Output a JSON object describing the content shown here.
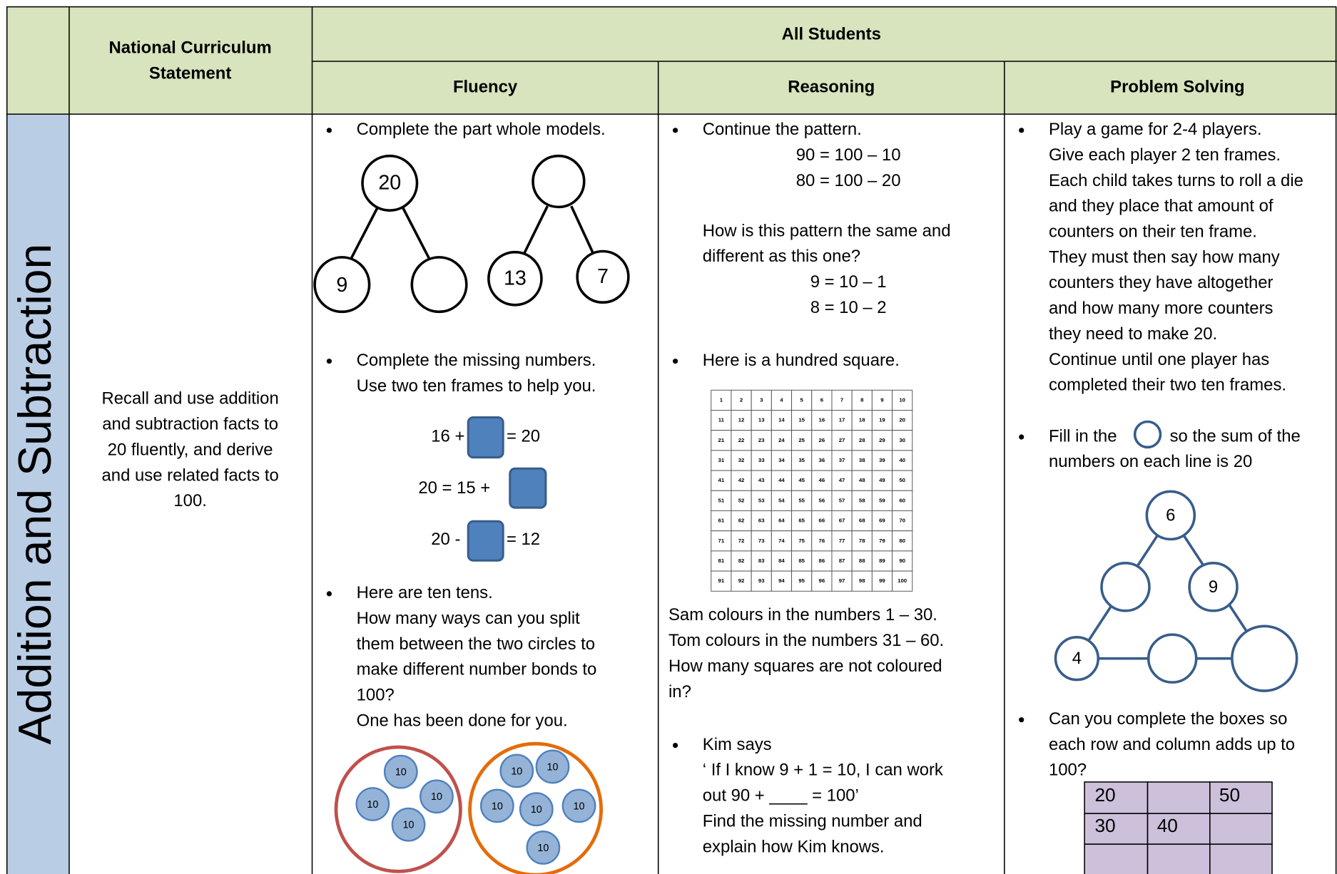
{
  "header": {
    "statement_heading": [
      "National Curriculum",
      "Statement"
    ],
    "group_heading": "All Students",
    "columns": [
      "Fluency",
      "Reasoning",
      "Problem Solving"
    ]
  },
  "row": {
    "topic": "Addition and Subtraction",
    "statement": [
      "Recall and use addition",
      "and subtraction facts to",
      "20 fluently, and derive",
      "and use related facts to",
      "100."
    ]
  },
  "fluency": {
    "part_whole": {
      "instruction": "Complete the part whole models.",
      "model_1": {
        "whole": "20",
        "part": "9"
      },
      "model_2": {
        "parts": [
          "13",
          "7"
        ]
      }
    },
    "missing": {
      "instruction": [
        "Complete the missing numbers.",
        "Use two ten frames to help you."
      ],
      "equations": [
        [
          "16 +",
          "= 20"
        ],
        [
          "20 = 15 +"
        ],
        [
          "20 -",
          "= 12"
        ]
      ]
    },
    "tens": {
      "instruction": [
        "Here are ten tens.",
        "How many ways can you split",
        "them between the two circles to",
        "make different number bonds to",
        "100?",
        "One has been done for you."
      ],
      "left_circle": [
        "10",
        "10",
        "10",
        "10"
      ],
      "right_circle": [
        "10",
        "10",
        "10",
        "10",
        "10",
        "10"
      ]
    }
  },
  "reasoning": {
    "pattern": {
      "instruction": "Continue the pattern.",
      "first": [
        "90 = 100 – 10",
        "80 = 100 – 20"
      ],
      "question": [
        "How is this pattern the same and",
        "different as this one?"
      ],
      "second": [
        "9 = 10 – 1",
        "8 = 10 – 2"
      ]
    },
    "hundred": {
      "instruction": "Here is a hundred square.",
      "square": [
        [
          1,
          2,
          3,
          4,
          5,
          6,
          7,
          8,
          9,
          10
        ],
        [
          11,
          12,
          13,
          14,
          15,
          16,
          17,
          18,
          19,
          20
        ],
        [
          21,
          22,
          23,
          24,
          25,
          26,
          27,
          28,
          29,
          30
        ],
        [
          31,
          32,
          33,
          34,
          35,
          36,
          37,
          38,
          39,
          40
        ],
        [
          41,
          42,
          43,
          44,
          45,
          46,
          47,
          48,
          49,
          50
        ],
        [
          51,
          52,
          53,
          54,
          55,
          56,
          57,
          58,
          59,
          60
        ],
        [
          61,
          62,
          63,
          64,
          65,
          66,
          67,
          68,
          69,
          70
        ],
        [
          71,
          72,
          73,
          74,
          75,
          76,
          77,
          78,
          79,
          80
        ],
        [
          81,
          82,
          83,
          84,
          85,
          86,
          87,
          88,
          89,
          90
        ],
        [
          91,
          92,
          93,
          94,
          95,
          96,
          97,
          98,
          99,
          100
        ]
      ],
      "question": [
        "Sam colours in the numbers 1 – 30.",
        "Tom colours in the numbers 31 – 60.",
        "How many squares are not coloured",
        "in?"
      ]
    },
    "kim": [
      "Kim says",
      "‘ If I know 9 + 1 = 10, I can work",
      "out 90 + ____ = 100’",
      "Find the missing number and",
      "explain how Kim knows."
    ]
  },
  "problem_solving": {
    "game": [
      "Play a game for 2-4 players.",
      "Give each player 2 ten frames.",
      "Each child takes turns to roll a die",
      "and they place that amount of",
      "counters on their ten frame.",
      "They must then say how many",
      "counters they have altogether",
      "and how many more counters",
      "they need to make 20.",
      "Continue until one player has",
      "completed their two ten frames."
    ],
    "triangle": {
      "instruction_start": "Fill in the",
      "instruction_end": "so the sum of the",
      "instruction_line2": "numbers on each line is 20",
      "top": "6",
      "right": "9",
      "bottom_left": "4"
    },
    "boxes": {
      "instruction": [
        "Can you complete the boxes so",
        "each row and column adds up to",
        "100?"
      ],
      "row_1": [
        "20",
        "50"
      ],
      "row_2": [
        "30",
        "40"
      ]
    }
  }
}
